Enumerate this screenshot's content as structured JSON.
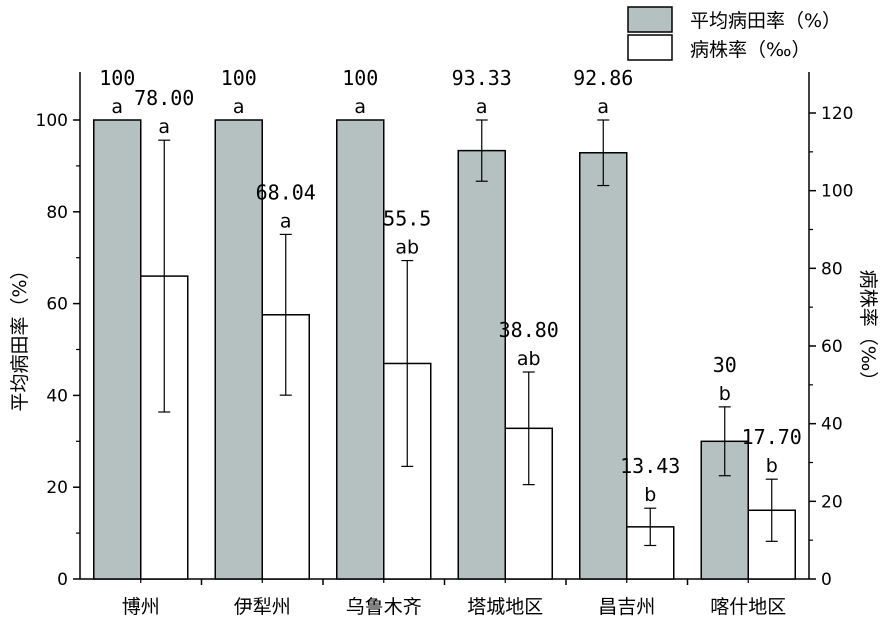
{
  "chart_data": {
    "type": "bar",
    "categories": [
      "博州",
      "伊犁州",
      "乌鲁木齐",
      "塔城地区",
      "昌吉州",
      "喀什地区"
    ],
    "series": [
      {
        "name": "平均病田率（%）",
        "axis": "left",
        "color": "#b4c1c0",
        "values": [
          100,
          100,
          100,
          93.33,
          92.86,
          30
        ],
        "value_labels": [
          "100",
          "100",
          "100",
          "93.33",
          "92.86",
          "30"
        ],
        "errors": [
          null,
          null,
          null,
          6.67,
          7.14,
          7.5
        ],
        "letters": [
          "a",
          "a",
          "a",
          "a",
          "a",
          "b"
        ]
      },
      {
        "name": "病株率（‰）",
        "axis": "right",
        "color": "#ffffff",
        "values": [
          78.0,
          68.04,
          55.5,
          38.8,
          13.43,
          17.7
        ],
        "value_labels": [
          "78.00",
          "68.04",
          "55.5",
          "38.80",
          "13.43",
          "17.70"
        ],
        "errors": [
          35,
          20.7,
          26.5,
          14.5,
          4.8,
          8
        ],
        "letters": [
          "a",
          "a",
          "ab",
          "ab",
          "b",
          "b"
        ]
      }
    ],
    "y_left": {
      "label": "平均病田率（%）",
      "min": 0,
      "max": 100,
      "ticks": [
        0,
        20,
        40,
        60,
        80,
        100
      ]
    },
    "y_right": {
      "label": "病株率（‰）",
      "min": 0,
      "max": 120,
      "ticks": [
        0,
        20,
        40,
        60,
        80,
        100,
        120
      ]
    },
    "legend_position": "top-right",
    "grid": false
  }
}
